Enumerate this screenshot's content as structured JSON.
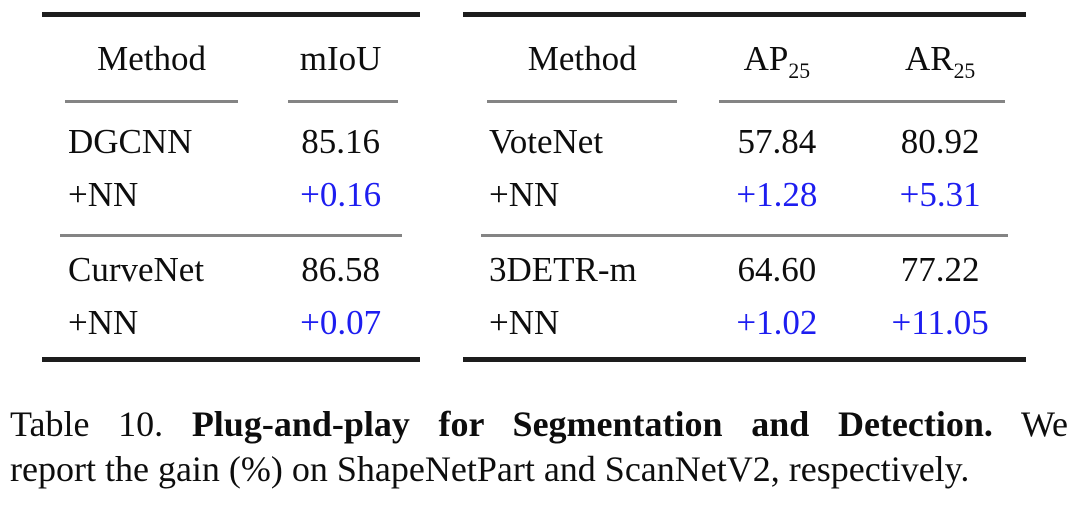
{
  "colors": {
    "gain_blue": "#1d1df0",
    "text_black": "#0d0d0d",
    "rule_dark": "#1d1d1d",
    "rule_light": "#848484"
  },
  "left_table": {
    "headers": {
      "method": "Method",
      "metric": "mIoU"
    },
    "rows": [
      {
        "method": "DGCNN",
        "v1": "85.16"
      },
      {
        "method": "+NN",
        "v1": "+0.16"
      },
      {
        "method": "CurveNet",
        "v1": "86.58"
      },
      {
        "method": "+NN",
        "v1": "+0.07"
      }
    ]
  },
  "right_table": {
    "headers": {
      "method": "Method",
      "metric1": "AP",
      "metric1_sub": "25",
      "metric2": "AR",
      "metric2_sub": "25"
    },
    "rows": [
      {
        "method": "VoteNet",
        "v1": "57.84",
        "v2": "80.92"
      },
      {
        "method": "+NN",
        "v1": "+1.28",
        "v2": "+5.31"
      },
      {
        "method": "3DETR-m",
        "v1": "64.60",
        "v2": "77.22"
      },
      {
        "method": "+NN",
        "v1": "+1.02",
        "v2": "+11.05"
      }
    ]
  },
  "caption": {
    "label": "Table 10.",
    "title": "Plug-and-play for Segmentation and Detection.",
    "line1_tail": "We",
    "line2": "report the gain (%) on ShapeNetPart and ScanNetV2, respectively."
  }
}
